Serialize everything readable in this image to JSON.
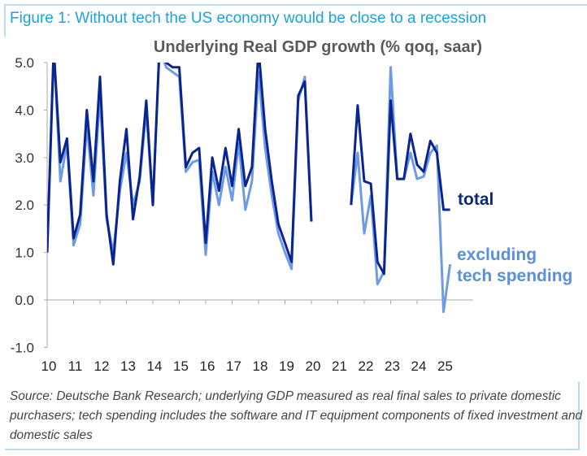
{
  "figure_title": "Figure 1: Without tech the US economy would be close to a recession",
  "source_note": "Source: Deutsche Bank Research; underlying GDP measured as real final sales to private domestic purchasers; tech spending includes the software and IT equipment components of fixed investment and domestic sales",
  "colors": {
    "total": "#0b2590",
    "excluding": "#6d9be6",
    "title": "#1aa3dc",
    "frame": "#a8d4ec"
  },
  "chart_data": {
    "type": "line",
    "title": "Underlying Real GDP growth (% qoq, saar)",
    "xlabel": "",
    "ylabel": "",
    "ylim": [
      -1.0,
      5.0
    ],
    "xlim": [
      2010,
      2025.75
    ],
    "yticks": [
      "5.0",
      "4.0",
      "3.0",
      "2.0",
      "1.0",
      "0.0",
      "-1.0"
    ],
    "ytick_values": [
      5,
      4,
      3,
      2,
      1,
      0,
      -1
    ],
    "xtick_labels": [
      "10",
      "11",
      "12",
      "13",
      "14",
      "15",
      "16",
      "17",
      "18",
      "19",
      "20",
      "21",
      "22",
      "23",
      "24",
      "25"
    ],
    "frequency": "quarterly",
    "segments": [
      {
        "start": 2010.0
      },
      {
        "start": 2021.5
      }
    ],
    "series": [
      {
        "name": "total",
        "label": "total",
        "segments": [
          [
            1.0,
            5.3,
            2.9,
            3.4,
            1.3,
            1.8,
            4.0,
            2.5,
            4.7,
            1.8,
            0.75,
            2.5,
            3.6,
            1.7,
            2.6,
            4.2,
            2.0,
            5.3,
            5.0,
            4.9,
            4.9,
            2.8,
            3.1,
            3.2,
            1.2,
            3.0,
            2.3,
            3.2,
            2.4,
            3.6,
            2.4,
            2.8,
            5.3,
            3.6,
            2.5,
            1.6,
            1.2,
            0.8,
            4.3,
            4.6,
            1.65
          ],
          [
            2.0,
            4.1,
            2.5,
            2.45,
            0.8,
            0.55,
            4.2,
            2.55,
            2.55,
            3.5,
            2.85,
            2.7,
            3.35,
            3.1,
            1.9,
            1.9
          ]
        ]
      },
      {
        "name": "excluding tech spending",
        "label": [
          "excluding",
          "tech spending"
        ],
        "segments": [
          [
            1.0,
            5.3,
            2.5,
            3.3,
            1.15,
            1.6,
            3.7,
            2.2,
            4.3,
            1.7,
            1.0,
            2.3,
            3.1,
            2.0,
            2.5,
            4.0,
            2.0,
            5.3,
            4.9,
            4.8,
            4.7,
            2.7,
            2.9,
            2.95,
            0.95,
            2.7,
            2.0,
            2.8,
            2.1,
            3.3,
            1.9,
            2.5,
            4.8,
            3.2,
            2.2,
            1.4,
            1.0,
            0.65,
            4.2,
            4.7,
            1.65
          ],
          [
            2.0,
            3.1,
            1.4,
            2.2,
            0.33,
            0.6,
            4.9,
            2.55,
            2.55,
            3.1,
            2.55,
            2.6,
            3.1,
            3.25,
            -0.25,
            0.75
          ]
        ]
      }
    ],
    "legend": "right, inline labels"
  }
}
